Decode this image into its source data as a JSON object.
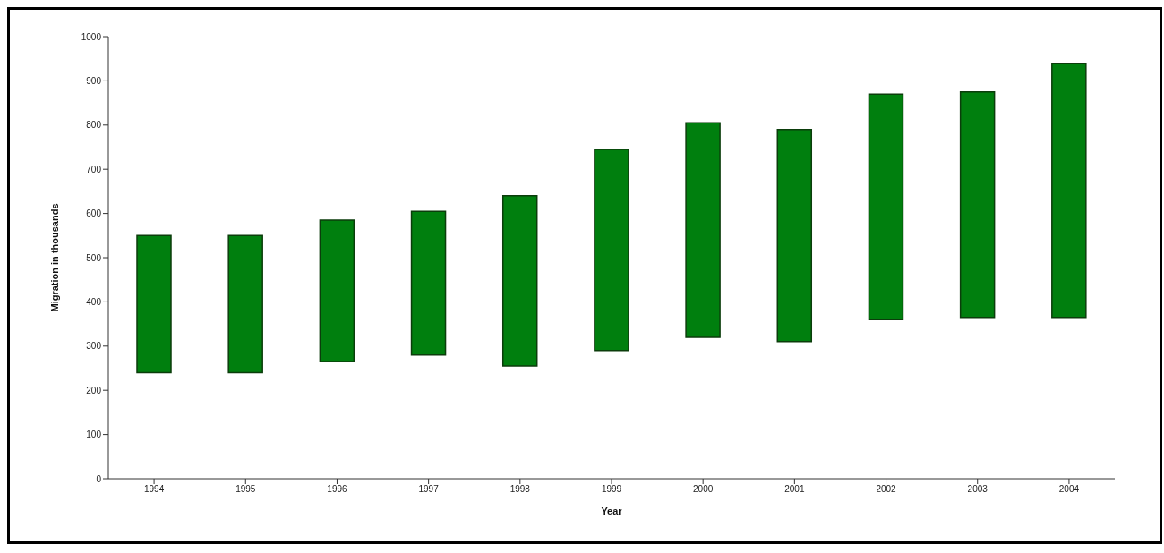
{
  "chart_data": {
    "type": "bar",
    "xlabel": "Year",
    "ylabel": "Migration in thousands",
    "categories": [
      "1994",
      "1995",
      "1996",
      "1997",
      "1998",
      "1999",
      "2000",
      "2001",
      "2002",
      "2003",
      "2004"
    ],
    "base": [
      240,
      240,
      265,
      280,
      255,
      290,
      320,
      310,
      360,
      365,
      365
    ],
    "values": [
      310,
      310,
      320,
      325,
      385,
      455,
      485,
      480,
      510,
      510,
      575
    ],
    "color": "#007f0e",
    "ylim": [
      0,
      1000
    ],
    "yticks": [
      0,
      100,
      200,
      300,
      400,
      500,
      600,
      700,
      800,
      900,
      1000
    ],
    "grid": false,
    "legend": false
  }
}
